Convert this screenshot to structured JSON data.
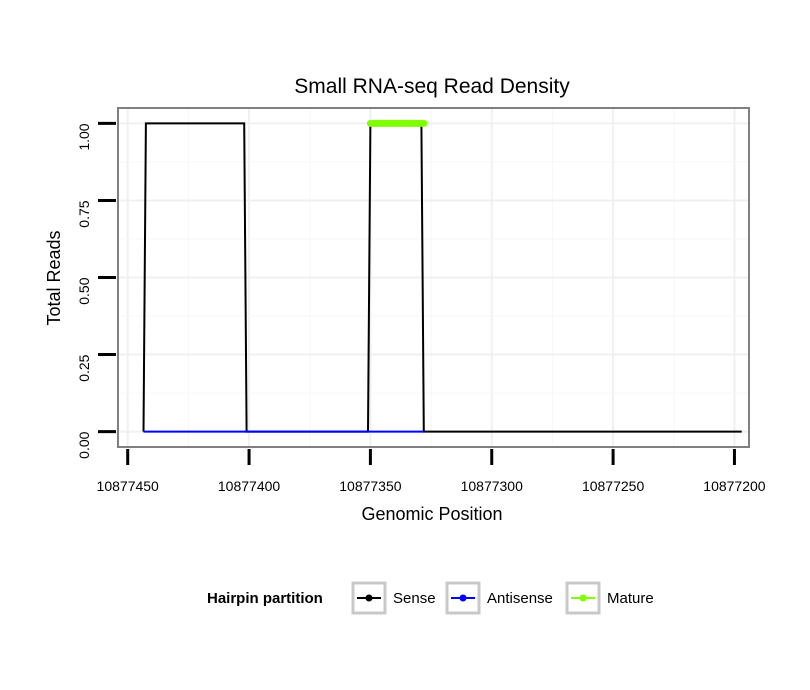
{
  "chart_data": {
    "type": "line",
    "title": "Small RNA-seq Read Density",
    "xlabel": "Genomic Position",
    "ylabel": "Total Reads",
    "x_reversed": true,
    "xlim": [
      10877454,
      10877194
    ],
    "ylim": [
      -0.05,
      1.05
    ],
    "x_ticks": [
      10877450,
      10877400,
      10877350,
      10877300,
      10877250,
      10877200
    ],
    "x_tick_labels": [
      "10877450",
      "10877400",
      "10877350",
      "10877300",
      "10877250",
      "10877200"
    ],
    "y_ticks": [
      0,
      0.25,
      0.5,
      0.75,
      1.0
    ],
    "y_tick_labels": [
      "0.00",
      "0.25",
      "0.50",
      "0.75",
      "1.00"
    ],
    "grid": true,
    "series": [
      {
        "name": "Sense",
        "color": "#000000",
        "points": [
          [
            10877443.5,
            0
          ],
          [
            10877442.5,
            1
          ],
          [
            10877402,
            1
          ],
          [
            10877401,
            0
          ],
          [
            10877351,
            0
          ],
          [
            10877350,
            1
          ],
          [
            10877329,
            1
          ],
          [
            10877328,
            0
          ],
          [
            10877197,
            0
          ]
        ]
      },
      {
        "name": "Antisense",
        "color": "#0000ff",
        "points": [
          [
            10877443.5,
            0
          ],
          [
            10877401,
            0
          ],
          [
            10877351,
            0
          ],
          [
            10877328,
            0
          ]
        ]
      },
      {
        "name": "Mature",
        "color": "#7fff00",
        "points": [
          [
            10877350,
            1
          ],
          [
            10877328,
            1
          ]
        ]
      }
    ],
    "legend": {
      "title": "Hairpin partition",
      "position": "bottom",
      "entries": [
        {
          "label": "Sense",
          "color": "#000000"
        },
        {
          "label": "Antisense",
          "color": "#0000ff"
        },
        {
          "label": "Mature",
          "color": "#7fff00"
        }
      ]
    }
  }
}
